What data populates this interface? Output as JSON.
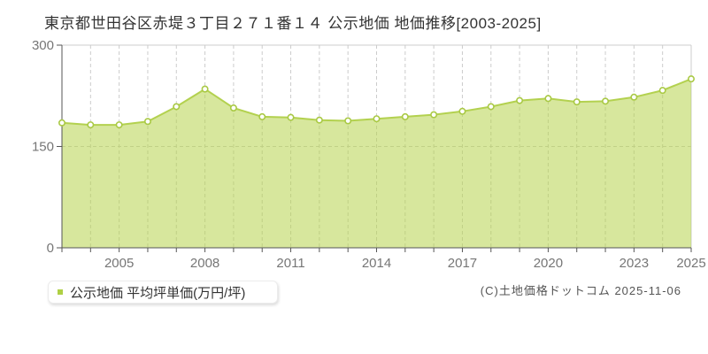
{
  "page": {
    "title": "東京都世田谷区赤堤３丁目２７１番１４ 公示地価 地価推移[2003-2025]",
    "copyright": "(C)土地価格ドットコム 2025-11-06"
  },
  "legend": {
    "label": "公示地価 平均坪単価(万円/坪)",
    "marker_color": "#afd044"
  },
  "chart_data": {
    "type": "area",
    "title": "東京都世田谷区赤堤３丁目２７１番１４ 公示地価 地価推移[2003-2025]",
    "x": [
      2003,
      2004,
      2005,
      2006,
      2007,
      2008,
      2009,
      2010,
      2011,
      2012,
      2013,
      2014,
      2015,
      2016,
      2017,
      2018,
      2019,
      2020,
      2021,
      2022,
      2023,
      2024,
      2025
    ],
    "series": [
      {
        "name": "公示地価 平均坪単価(万円/坪)",
        "values": [
          185,
          182,
          182,
          187,
          209,
          235,
          207,
          194,
          193,
          189,
          188,
          191,
          194,
          197,
          202,
          209,
          218,
          221,
          216,
          217,
          223,
          233,
          250
        ]
      }
    ],
    "xlabel": "",
    "ylabel": "",
    "ylim": [
      0,
      300
    ],
    "yticks": [
      0,
      150,
      300
    ],
    "xtick_labels": [
      "2005",
      "2008",
      "2011",
      "2014",
      "2017",
      "2020",
      "2023",
      "2025"
    ],
    "grid": {
      "vertical": "dashed-every-year",
      "horizontal_at": [
        150
      ]
    },
    "legend_position": "bottom-left",
    "colors": {
      "line": "#b3d14f",
      "fill": "rgba(182,212,77,0.55)",
      "marker_fill": "#ffffff",
      "marker_stroke": "#a9c944",
      "grid": "#cccccc",
      "plot_border": "#cccccc",
      "axis": "#555555",
      "tick_text": "#767676"
    }
  }
}
